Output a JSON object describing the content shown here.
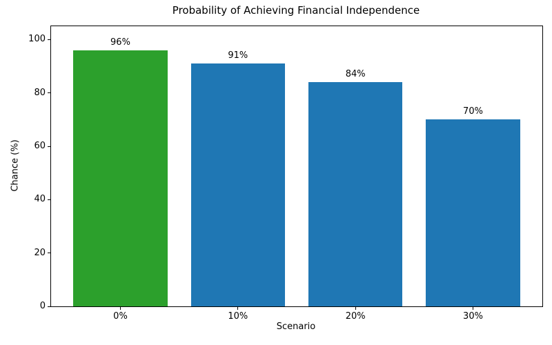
{
  "chart_data": {
    "type": "bar",
    "title": "Probability of Achieving Financial Independence",
    "xlabel": "Scenario",
    "ylabel": "Chance (%)",
    "categories": [
      "0%",
      "10%",
      "20%",
      "30%"
    ],
    "values": [
      96,
      91,
      84,
      70
    ],
    "value_labels": [
      "96%",
      "91%",
      "84%",
      "70%"
    ],
    "bar_colors": [
      "#2ca02c",
      "#1f77b4",
      "#1f77b4",
      "#1f77b4"
    ],
    "ylim": [
      0,
      105
    ],
    "yticks": [
      0,
      20,
      40,
      60,
      80,
      100
    ],
    "bar_width_fraction": 0.8,
    "grid": false,
    "legend_position": "none"
  },
  "colors": {
    "highlight_green": "#2ca02c",
    "default_blue": "#1f77b4",
    "background": "#ffffff",
    "axis": "#000000"
  }
}
